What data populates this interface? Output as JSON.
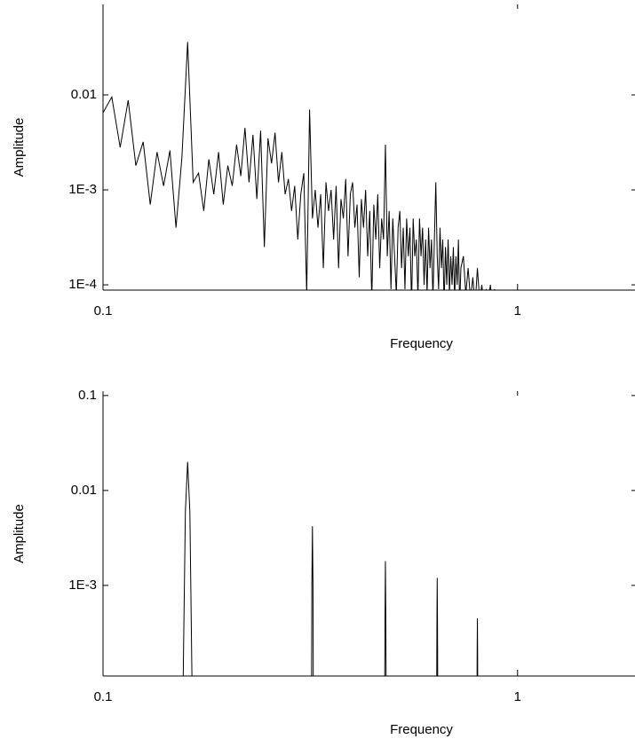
{
  "chart_data": [
    {
      "type": "line",
      "xlabel": "Frequency",
      "ylabel": "Amplitude",
      "xscale": "log",
      "yscale": "log",
      "color": "#000000",
      "xlim": [
        0.1,
        1.92
      ],
      "ylim": [
        8.8e-05,
        0.0897
      ],
      "xticks": [
        0.1,
        1
      ],
      "yticks": [
        0.01,
        {
          "value": 0.001,
          "label": "1E-3"
        },
        {
          "value": 0.0001,
          "label": "1E-4"
        }
      ],
      "x": [
        0.1,
        0.105,
        0.11,
        0.115,
        0.12,
        0.125,
        0.13,
        0.135,
        0.14,
        0.145,
        0.15,
        0.155,
        0.16,
        0.165,
        0.17,
        0.175,
        0.18,
        0.185,
        0.19,
        0.195,
        0.2,
        0.205,
        0.21,
        0.215,
        0.22,
        0.225,
        0.23,
        0.235,
        0.24,
        0.245,
        0.25,
        0.255,
        0.26,
        0.265,
        0.27,
        0.275,
        0.28,
        0.285,
        0.29,
        0.295,
        0.3,
        0.305,
        0.31,
        0.315,
        0.32,
        0.325,
        0.33,
        0.335,
        0.34,
        0.345,
        0.35,
        0.355,
        0.36,
        0.365,
        0.37,
        0.375,
        0.38,
        0.385,
        0.39,
        0.395,
        0.4,
        0.405,
        0.41,
        0.415,
        0.42,
        0.425,
        0.43,
        0.435,
        0.44,
        0.445,
        0.45,
        0.455,
        0.46,
        0.465,
        0.47,
        0.475,
        0.48,
        0.485,
        0.49,
        0.495,
        0.5,
        0.505,
        0.51,
        0.515,
        0.52,
        0.525,
        0.53,
        0.535,
        0.54,
        0.545,
        0.55,
        0.555,
        0.56,
        0.565,
        0.57,
        0.575,
        0.58,
        0.585,
        0.59,
        0.595,
        0.6,
        0.605,
        0.61,
        0.615,
        0.62,
        0.625,
        0.63,
        0.635,
        0.64,
        0.645,
        0.65,
        0.655,
        0.66,
        0.665,
        0.67,
        0.675,
        0.68,
        0.685,
        0.69,
        0.695,
        0.7,
        0.705,
        0.71,
        0.715,
        0.72,
        0.725,
        0.73,
        0.74,
        0.75,
        0.76,
        0.77,
        0.78,
        0.79,
        0.8,
        0.81,
        0.82,
        0.83,
        0.84,
        0.85,
        0.86,
        0.87,
        0.88,
        0.89
      ],
      "values": [
        0.0065,
        0.0095,
        0.0028,
        0.0088,
        0.0018,
        0.0032,
        0.0007,
        0.0025,
        0.0011,
        0.0026,
        0.0004,
        0.0022,
        0.036,
        0.0012,
        0.0015,
        0.0006,
        0.0021,
        0.0009,
        0.0025,
        0.0007,
        0.0018,
        0.0011,
        0.003,
        0.0014,
        0.0045,
        0.0012,
        0.0038,
        0.0008,
        0.0042,
        0.00025,
        0.0035,
        0.0019,
        0.004,
        0.0012,
        0.0025,
        0.0009,
        0.0013,
        0.0006,
        0.0011,
        0.0003,
        0.0009,
        0.0015,
        8e-05,
        0.007,
        0.0005,
        0.001,
        0.0004,
        0.0009,
        0.00015,
        0.0012,
        0.0006,
        0.001,
        0.0003,
        0.0011,
        0.00015,
        0.0008,
        0.0005,
        0.0013,
        0.0002,
        0.0009,
        0.0012,
        0.0004,
        0.0007,
        0.00012,
        0.0008,
        0.0004,
        0.001,
        0.0002,
        0.0006,
        7e-05,
        0.0007,
        0.0003,
        0.0009,
        0.00015,
        0.0005,
        0.0003,
        0.003,
        0.0002,
        0.0006,
        9e-05,
        0.0005,
        0.0002,
        8e-05,
        0.0004,
        0.0006,
        0.00015,
        0.0004,
        9e-05,
        0.0005,
        0.0002,
        0.0004,
        6e-05,
        0.0005,
        0.0002,
        0.0003,
        7e-05,
        0.0005,
        0.0002,
        0.0004,
        0.0001,
        0.0003,
        8e-05,
        0.0004,
        0.00015,
        0.0003,
        7e-05,
        0.0003,
        0.0012,
        0.0002,
        9e-05,
        0.0004,
        0.00015,
        0.0003,
        6e-05,
        0.00025,
        0.0001,
        0.0003,
        8e-05,
        0.0002,
        0.0001,
        0.00025,
        7e-05,
        0.0002,
        0.0001,
        0.0003,
        6e-05,
        0.00015,
        0.0002,
        8e-05,
        0.00015,
        7e-05,
        0.00012,
        6e-05,
        0.00015,
        7e-05,
        0.0001,
        6e-05,
        9e-05,
        7e-05,
        0.0001,
        6e-05,
        9e-05,
        5e-05
      ]
    },
    {
      "type": "line",
      "xlabel": "Frequency",
      "ylabel": "Amplitude",
      "xscale": "log",
      "yscale": "log",
      "color": "#000000",
      "xlim": [
        0.1,
        1.92
      ],
      "ylim": [
        0.000111,
        0.111
      ],
      "xticks": [
        0.1,
        1
      ],
      "yticks": [
        0.1,
        0.01,
        {
          "value": 0.001,
          "label": "1E-3"
        }
      ],
      "x": [
        0.155,
        0.158,
        0.16,
        0.162,
        0.165,
        0.24,
        0.318,
        0.319,
        0.32,
        0.321,
        0.322,
        0.4,
        0.477,
        0.479,
        0.48,
        0.481,
        0.483,
        0.56,
        0.637,
        0.639,
        0.64,
        0.641,
        0.643,
        0.72,
        0.797,
        0.799,
        0.8,
        0.801,
        0.803
      ],
      "values": [
        1e-05,
        0.006,
        0.02,
        0.006,
        1e-05,
        null,
        1e-05,
        0.001,
        0.0042,
        0.001,
        1e-05,
        null,
        1e-05,
        0.0005,
        0.0018,
        0.0005,
        1e-05,
        null,
        1e-05,
        0.0004,
        0.0012,
        0.0004,
        1e-05,
        null,
        1e-05,
        0.0002,
        0.00045,
        0.0002,
        1e-05
      ]
    }
  ]
}
